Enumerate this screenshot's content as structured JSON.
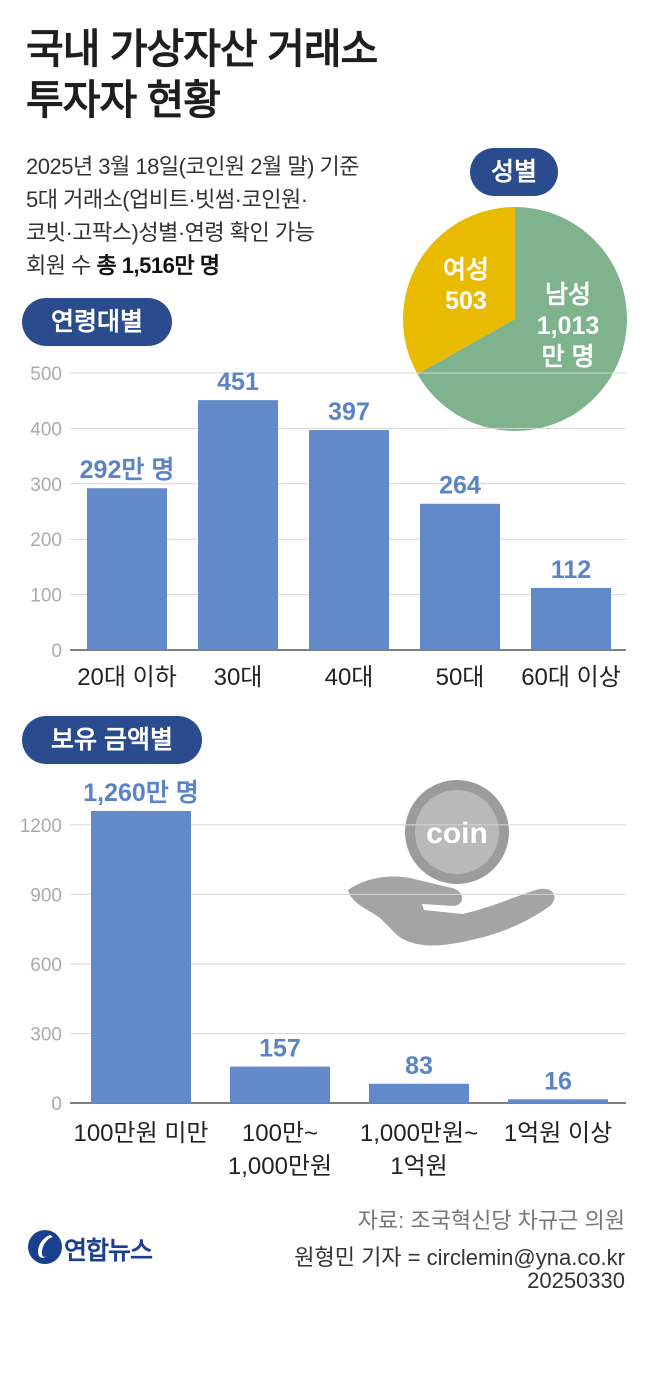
{
  "title_line1": "국내 가상자산 거래소",
  "title_line2": "투자자 현황",
  "subtitle": {
    "line1": "2025년 3월 18일(코인원 2월 말) 기준",
    "line2": "5대 거래소(업비트·빗썸·코인원·",
    "line3": "코빗·고팍스)성별·연령 확인 가능",
    "line4_prefix": "회원 수 ",
    "line4_total": "총 1,516만 명"
  },
  "sections": {
    "gender": "성별",
    "age": "연령대별",
    "holdings": "보유 금액별"
  },
  "colors": {
    "bar": "#6289c9",
    "male": "#7fb38e",
    "female": "#e9bb00",
    "pill": "#2a4b8d",
    "label": "#5b84c6"
  },
  "chart_data": [
    {
      "type": "pie",
      "title": "성별",
      "slices": [
        {
          "name": "남성",
          "value": 1013,
          "label_lines": [
            "남성",
            "1,013",
            "만 명"
          ]
        },
        {
          "name": "여성",
          "value": 503,
          "label_lines": [
            "여성",
            "503"
          ]
        }
      ]
    },
    {
      "type": "bar",
      "title": "연령대별",
      "categories": [
        "20대 이하",
        "30대",
        "40대",
        "50대",
        "60대 이상"
      ],
      "values": [
        292,
        451,
        397,
        264,
        112
      ],
      "value_labels": [
        "292만 명",
        "451",
        "397",
        "264",
        "112"
      ],
      "ylim": [
        0,
        500
      ],
      "yticks": [
        0,
        100,
        200,
        300,
        400,
        500
      ],
      "grid": true
    },
    {
      "type": "bar",
      "title": "보유 금액별",
      "categories": [
        [
          "100만원 미만"
        ],
        [
          "100만~",
          "1,000만원"
        ],
        [
          "1,000만원~",
          "1억원"
        ],
        [
          "1억원 이상"
        ]
      ],
      "values": [
        1260,
        157,
        83,
        16
      ],
      "value_labels": [
        "1,260만 명",
        "157",
        "83",
        "16"
      ],
      "ylim": [
        0,
        1260
      ],
      "yticks": [
        0,
        300,
        600,
        900,
        1200
      ],
      "grid": true
    }
  ],
  "coin_text": "coin",
  "logo_text": "연합뉴스",
  "footer": {
    "source": "자료: 조국혁신당 차규근 의원",
    "reporter": "원형민 기자 = circlemin@yna.co.kr",
    "date": "20250330"
  }
}
